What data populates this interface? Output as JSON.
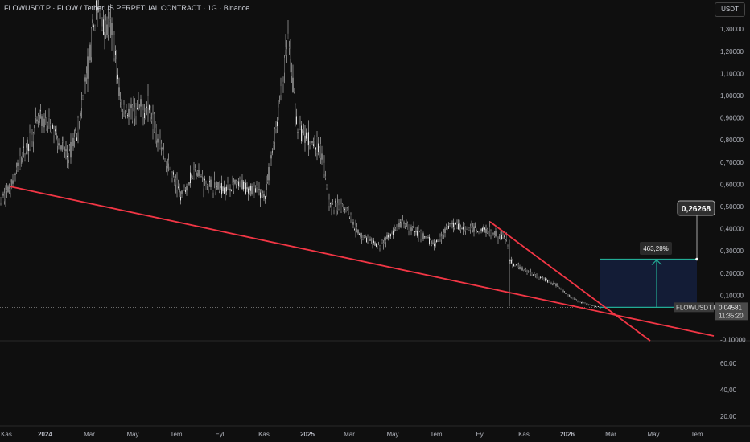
{
  "header": {
    "title": "FLOWUSDT.P · FLOW / TetherUS PERPETUAL CONTRACT · 1G · Binance",
    "currency": "USDT"
  },
  "price_axis": [
    "1,30000",
    "1,20000",
    "1,10000",
    "1,00000",
    "0,90000",
    "0,80000",
    "0,70000",
    "0,60000",
    "0,50000",
    "0,40000",
    "0,30000",
    "0,20000",
    "0,10000",
    "-0,10000"
  ],
  "price_values": [
    1.3,
    1.2,
    1.1,
    1.0,
    0.9,
    0.8,
    0.7,
    0.6,
    0.5,
    0.4,
    0.3,
    0.2,
    0.1,
    -0.1
  ],
  "lower_axis": [
    "60,00",
    "40,00",
    "20,00"
  ],
  "lower_values": [
    60,
    40,
    20
  ],
  "time_axis": [
    "Kas",
    "2024",
    "Mar",
    "May",
    "Tem",
    "Eyl",
    "Kas",
    "2025",
    "Mar",
    "May",
    "Tem",
    "Eyl",
    "Kas",
    "2026",
    "Mar",
    "May",
    "Tem"
  ],
  "current": {
    "symbol": "FLOWUSDT.P",
    "price": "0,04581",
    "countdown": "11:35:20",
    "value": 0.04581
  },
  "target": {
    "label": "0,26268",
    "value": 0.26268,
    "percent": "463,28%"
  },
  "colors": {
    "trend": "#f23645",
    "box": "#131c36",
    "teal": "#22ab94"
  },
  "chart_data": {
    "type": "candlestick",
    "approx_price_path": [
      0.52,
      0.6,
      0.7,
      0.9,
      0.85,
      0.72,
      0.9,
      1.15,
      1.4,
      1.3,
      1.3,
      0.95,
      0.92,
      0.95,
      0.72,
      0.55,
      0.68,
      0.6,
      0.58,
      0.6,
      0.55,
      0.9,
      1.25,
      0.85,
      0.8,
      0.75,
      0.5,
      0.5,
      0.38,
      0.32,
      0.42,
      0.38,
      0.33,
      0.42,
      0.4,
      0.4,
      0.38,
      0.35,
      0.25,
      0.2,
      0.15,
      0.1,
      0.07,
      0.05,
      0.046
    ]
  }
}
